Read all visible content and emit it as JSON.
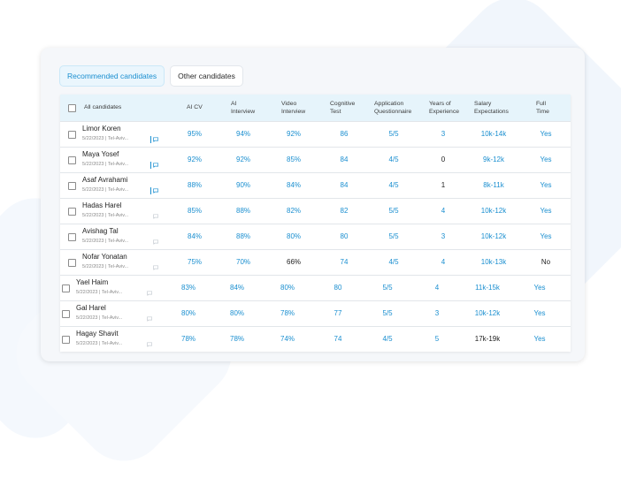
{
  "tabs": [
    "Recommended candidates",
    "Other candidates"
  ],
  "colors": {
    "accent": "#1b8fd0",
    "header_bg": "#e6f4fb",
    "text_dark": "#222222"
  },
  "table": {
    "columns": [
      {
        "key": "all",
        "label": "All candidates"
      },
      {
        "key": "ai_cv",
        "label": "AI CV"
      },
      {
        "key": "ai_interview",
        "label": "AI\nInterview"
      },
      {
        "key": "video_interview",
        "label": "Video\nInterview"
      },
      {
        "key": "cognitive",
        "label": "Cognitive\nTest"
      },
      {
        "key": "app_q",
        "label": "Application\nQuestionnaire"
      },
      {
        "key": "years",
        "label": "Years of\nExperience"
      },
      {
        "key": "salary",
        "label": "Salary\nExpectations"
      },
      {
        "key": "full_time",
        "label": "Full\nTime"
      }
    ],
    "rows": [
      {
        "name": "Limor Koren",
        "meta": "5/22/2023 | Tel-Aviv...",
        "chat_active": true,
        "values": [
          "95%",
          "94%",
          "92%",
          "86",
          "5/5",
          "3",
          "10k-14k",
          "Yes"
        ],
        "dark": []
      },
      {
        "name": "Maya Yosef",
        "meta": "5/22/2023 | Tel-Aviv...",
        "chat_active": true,
        "values": [
          "92%",
          "92%",
          "85%",
          "84",
          "4/5",
          "0",
          "9k-12k",
          "Yes"
        ],
        "dark": [
          5
        ]
      },
      {
        "name": "Asaf Avrahami",
        "meta": "5/22/2023 | Tel-Aviv...",
        "chat_active": true,
        "values": [
          "88%",
          "90%",
          "84%",
          "84",
          "4/5",
          "1",
          "8k-11k",
          "Yes"
        ],
        "dark": [
          5
        ]
      },
      {
        "name": "Hadas Harel",
        "meta": "5/22/2023 | Tel-Aviv...",
        "chat_active": false,
        "values": [
          "85%",
          "88%",
          "82%",
          "82",
          "5/5",
          "4",
          "10k-12k",
          "Yes"
        ],
        "dark": []
      },
      {
        "name": "Avishag Tal",
        "meta": "5/22/2023 | Tel-Aviv...",
        "chat_active": false,
        "values": [
          "84%",
          "88%",
          "80%",
          "80",
          "5/5",
          "3",
          "10k-12k",
          "Yes"
        ],
        "dark": []
      },
      {
        "name": "Nofar Yonatan",
        "meta": "5/22/2023 | Tel-Aviv...",
        "chat_active": false,
        "values": [
          "75%",
          "70%",
          "66%",
          "74",
          "4/5",
          "4",
          "10k-13k",
          "No"
        ],
        "dark": [
          2,
          7
        ]
      },
      {
        "name": "Yael Haim",
        "meta": "5/22/2023 | Tel-Aviv...",
        "chat_active": false,
        "values": [
          "83%",
          "84%",
          "80%",
          "80",
          "5/5",
          "4",
          "11k-15k",
          "Yes"
        ],
        "dark": []
      },
      {
        "name": "Gal Harel",
        "meta": "5/22/2023 | Tel-Aviv...",
        "chat_active": false,
        "values": [
          "80%",
          "80%",
          "78%",
          "77",
          "5/5",
          "3",
          "10k-12k",
          "Yes"
        ],
        "dark": []
      },
      {
        "name": "Hagay Shavit",
        "meta": "5/22/2023 | Tel-Aviv...",
        "chat_active": false,
        "values": [
          "78%",
          "78%",
          "74%",
          "74",
          "4/5",
          "5",
          "17k-19k",
          "Yes"
        ],
        "dark": [
          6
        ]
      }
    ]
  }
}
